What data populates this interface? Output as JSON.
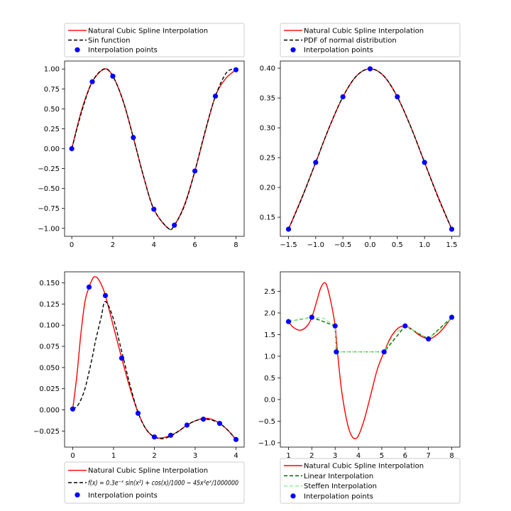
{
  "chart_data": [
    {
      "type": "line",
      "xlim": [
        -0.35,
        8.4
      ],
      "ylim": [
        -1.1,
        1.1
      ],
      "xticks": [
        0,
        2,
        4,
        6,
        8
      ],
      "xtick_labels": [
        "0",
        "2",
        "4",
        "6",
        "8"
      ],
      "yticks": [
        -1.0,
        -0.75,
        -0.5,
        -0.25,
        0.0,
        0.25,
        0.5,
        0.75,
        1.0
      ],
      "ytick_labels": [
        "−1.00",
        "−0.75",
        "−0.50",
        "−0.25",
        "0.00",
        "0.25",
        "0.50",
        "0.75",
        "1.00"
      ],
      "legend": {
        "position": "above",
        "entries": [
          "Natural Cubic Spline Interpolation",
          "Sin function",
          "Interpolation points"
        ]
      },
      "series": [
        {
          "name": "Natural Cubic Spline Interpolation",
          "style": "solid",
          "color": "#ff0000",
          "x": [
            0,
            0.5,
            1,
            1.6,
            2,
            2.5,
            3,
            3.5,
            4,
            4.7,
            5,
            5.5,
            6,
            6.5,
            7,
            7.5,
            8
          ],
          "y": [
            0,
            0.5,
            0.84,
            1.0,
            0.91,
            0.6,
            0.14,
            -0.35,
            -0.76,
            -1.0,
            -0.96,
            -0.7,
            -0.28,
            0.21,
            0.66,
            0.88,
            0.99
          ]
        },
        {
          "name": "Sin function",
          "style": "dashed",
          "color": "#000000",
          "x": [
            0,
            0.5,
            1,
            1.57,
            2,
            2.5,
            3,
            3.5,
            4,
            4.71,
            5,
            5.5,
            6,
            6.5,
            7,
            7.5,
            7.85,
            8
          ],
          "y": [
            0,
            0.48,
            0.84,
            1.0,
            0.91,
            0.6,
            0.14,
            -0.35,
            -0.76,
            -1.0,
            -0.96,
            -0.71,
            -0.28,
            0.22,
            0.66,
            0.94,
            1.0,
            0.99
          ]
        },
        {
          "name": "Interpolation points",
          "style": "points",
          "color": "#0000ff",
          "x": [
            0,
            1,
            2,
            3,
            4,
            5,
            6,
            7,
            8
          ],
          "y": [
            0,
            0.84,
            0.91,
            0.14,
            -0.76,
            -0.96,
            -0.28,
            0.66,
            0.99
          ]
        }
      ]
    },
    {
      "type": "line",
      "xlim": [
        -1.65,
        1.65
      ],
      "ylim": [
        0.118,
        0.412
      ],
      "xticks": [
        -1.5,
        -1.0,
        -0.5,
        0.0,
        0.5,
        1.0,
        1.5
      ],
      "xtick_labels": [
        "−1.5",
        "−1.0",
        "−0.5",
        "0.0",
        "0.5",
        "1.0",
        "1.5"
      ],
      "yticks": [
        0.15,
        0.2,
        0.25,
        0.3,
        0.35,
        0.4
      ],
      "ytick_labels": [
        "0.15",
        "0.20",
        "0.25",
        "0.30",
        "0.35",
        "0.40"
      ],
      "legend": {
        "position": "above",
        "entries": [
          "Natural Cubic Spline Interpolation",
          "PDF of normal distribution",
          "Interpolation points"
        ]
      },
      "series": [
        {
          "name": "Natural Cubic Spline Interpolation",
          "style": "solid",
          "color": "#ff0000",
          "x": [
            -1.5,
            -1.25,
            -1.0,
            -0.75,
            -0.5,
            -0.25,
            0,
            0.25,
            0.5,
            0.75,
            1.0,
            1.25,
            1.5
          ],
          "y": [
            0.13,
            0.184,
            0.242,
            0.301,
            0.352,
            0.387,
            0.399,
            0.387,
            0.352,
            0.301,
            0.242,
            0.184,
            0.13
          ]
        },
        {
          "name": "PDF of normal distribution",
          "style": "dashed",
          "color": "#000000",
          "x": [
            -1.5,
            -1.25,
            -1.0,
            -0.75,
            -0.5,
            -0.25,
            0,
            0.25,
            0.5,
            0.75,
            1.0,
            1.25,
            1.5
          ],
          "y": [
            0.13,
            0.183,
            0.242,
            0.301,
            0.352,
            0.387,
            0.399,
            0.387,
            0.352,
            0.301,
            0.242,
            0.183,
            0.13
          ]
        },
        {
          "name": "Interpolation points",
          "style": "points",
          "color": "#0000ff",
          "x": [
            -1.5,
            -1.0,
            -0.5,
            0.0,
            0.5,
            1.0,
            1.5
          ],
          "y": [
            0.13,
            0.242,
            0.352,
            0.399,
            0.352,
            0.242,
            0.13
          ]
        }
      ]
    },
    {
      "type": "line",
      "xlim": [
        -0.2,
        4.2
      ],
      "ylim": [
        -0.044,
        0.163
      ],
      "xticks": [
        0,
        1,
        2,
        3,
        4
      ],
      "xtick_labels": [
        "0",
        "1",
        "2",
        "3",
        "4"
      ],
      "yticks": [
        -0.025,
        0.0,
        0.025,
        0.05,
        0.075,
        0.1,
        0.125,
        0.15
      ],
      "ytick_labels": [
        "−0.025",
        "0.000",
        "0.025",
        "0.050",
        "0.075",
        "0.100",
        "0.125",
        "0.150"
      ],
      "legend": {
        "position": "below",
        "entries": [
          "Natural Cubic Spline Interpolation",
          "f(x) = 0.3e⁻ˣ sin(x²) + cos(x)/1000 − 45x²eˣ/1000000",
          "Interpolation points"
        ]
      },
      "series": [
        {
          "name": "Natural Cubic Spline Interpolation",
          "style": "solid",
          "color": "#ff0000",
          "x": [
            0,
            0.1,
            0.2,
            0.3,
            0.4,
            0.5,
            0.55,
            0.6,
            0.7,
            0.8,
            1.0,
            1.2,
            1.4,
            1.6,
            1.8,
            2.0,
            2.2,
            2.4,
            2.6,
            2.8,
            3.0,
            3.2,
            3.4,
            3.6,
            3.8,
            4.0
          ],
          "y": [
            0.001,
            0.04,
            0.09,
            0.128,
            0.145,
            0.156,
            0.157,
            0.156,
            0.148,
            0.135,
            0.098,
            0.061,
            0.026,
            -0.003,
            -0.023,
            -0.032,
            -0.033,
            -0.03,
            -0.025,
            -0.018,
            -0.013,
            -0.01,
            -0.011,
            -0.016,
            -0.024,
            -0.035
          ]
        },
        {
          "name": "f(x) = 0.3e⁻ˣ sin(x²) + cos(x)/1000 − 45x²eˣ/1000000",
          "style": "dashed",
          "color": "#000000",
          "x": [
            0,
            0.1,
            0.2,
            0.3,
            0.4,
            0.5,
            0.55,
            0.6,
            0.7,
            0.8,
            1.0,
            1.2,
            1.4,
            1.6,
            1.8,
            2.0,
            2.2,
            2.4,
            2.6,
            2.8,
            3.0,
            3.2,
            3.4,
            3.6,
            3.8,
            4.0
          ],
          "y": [
            0.001,
            0.004,
            0.012,
            0.025,
            0.045,
            0.067,
            0.08,
            0.09,
            0.11,
            0.128,
            0.107,
            0.069,
            0.03,
            -0.003,
            -0.023,
            -0.032,
            -0.034,
            -0.031,
            -0.025,
            -0.018,
            -0.013,
            -0.011,
            -0.012,
            -0.016,
            -0.024,
            -0.035
          ]
        },
        {
          "name": "Interpolation points",
          "style": "points",
          "color": "#0000ff",
          "x": [
            0.0,
            0.4,
            0.8,
            1.2,
            1.6,
            2.0,
            2.4,
            2.8,
            3.2,
            3.6,
            4.0
          ],
          "y": [
            0.001,
            0.145,
            0.135,
            0.061,
            -0.004,
            -0.032,
            -0.03,
            -0.018,
            -0.011,
            -0.016,
            -0.035
          ]
        }
      ]
    },
    {
      "type": "line",
      "xlim": [
        0.65,
        8.35
      ],
      "ylim": [
        -1.1,
        2.95
      ],
      "xticks": [
        1,
        2,
        3,
        4,
        5,
        6,
        7,
        8
      ],
      "xtick_labels": [
        "1",
        "2",
        "3",
        "4",
        "5",
        "6",
        "7",
        "8"
      ],
      "yticks": [
        -1.0,
        -0.5,
        0.0,
        0.5,
        1.0,
        1.5,
        2.0,
        2.5
      ],
      "ytick_labels": [
        "−1.0",
        "−0.5",
        "0.0",
        "0.5",
        "1.0",
        "1.5",
        "2.0",
        "2.5"
      ],
      "legend": {
        "position": "below",
        "entries": [
          "Natural Cubic Spline Interpolation",
          "Linear Interpolation",
          "Steffen Interpolation",
          "Interpolation points"
        ]
      },
      "series": [
        {
          "name": "Natural Cubic Spline Interpolation",
          "style": "solid",
          "color": "#ff0000",
          "x": [
            1.0,
            1.2,
            1.5,
            1.8,
            2.0,
            2.2,
            2.4,
            2.6,
            2.8,
            3.0,
            3.1,
            3.3,
            3.6,
            3.9,
            4.2,
            4.5,
            4.8,
            5.1,
            5.4,
            5.7,
            6.0,
            6.3,
            6.6,
            7.0,
            7.3,
            7.6,
            8.0
          ],
          "y": [
            1.8,
            1.67,
            1.6,
            1.7,
            1.9,
            2.25,
            2.6,
            2.68,
            2.3,
            1.7,
            1.1,
            0.12,
            -0.7,
            -0.9,
            -0.55,
            0.05,
            0.68,
            1.1,
            1.45,
            1.65,
            1.7,
            1.62,
            1.49,
            1.4,
            1.47,
            1.62,
            1.9
          ]
        },
        {
          "name": "Linear Interpolation",
          "style": "dashed",
          "color": "#006400",
          "x": [
            1,
            2,
            3,
            3.05,
            5.1,
            6,
            7,
            8
          ],
          "y": [
            1.8,
            1.9,
            1.7,
            1.1,
            1.1,
            1.7,
            1.4,
            1.9
          ]
        },
        {
          "name": "Steffen Interpolation",
          "style": "dashed",
          "color": "#90ee90",
          "x": [
            1,
            1.5,
            2,
            2.5,
            3,
            3.05,
            5.1,
            5.5,
            6,
            6.5,
            7,
            7.5,
            8
          ],
          "y": [
            1.8,
            1.84,
            1.9,
            1.88,
            1.7,
            1.1,
            1.1,
            1.5,
            1.7,
            1.56,
            1.4,
            1.62,
            1.9
          ]
        },
        {
          "name": "Interpolation points",
          "style": "points",
          "color": "#0000ff",
          "x": [
            1,
            2,
            3,
            3.05,
            5.1,
            6,
            7,
            8
          ],
          "y": [
            1.8,
            1.9,
            1.7,
            1.1,
            1.1,
            1.7,
            1.4,
            1.9
          ]
        }
      ]
    }
  ]
}
